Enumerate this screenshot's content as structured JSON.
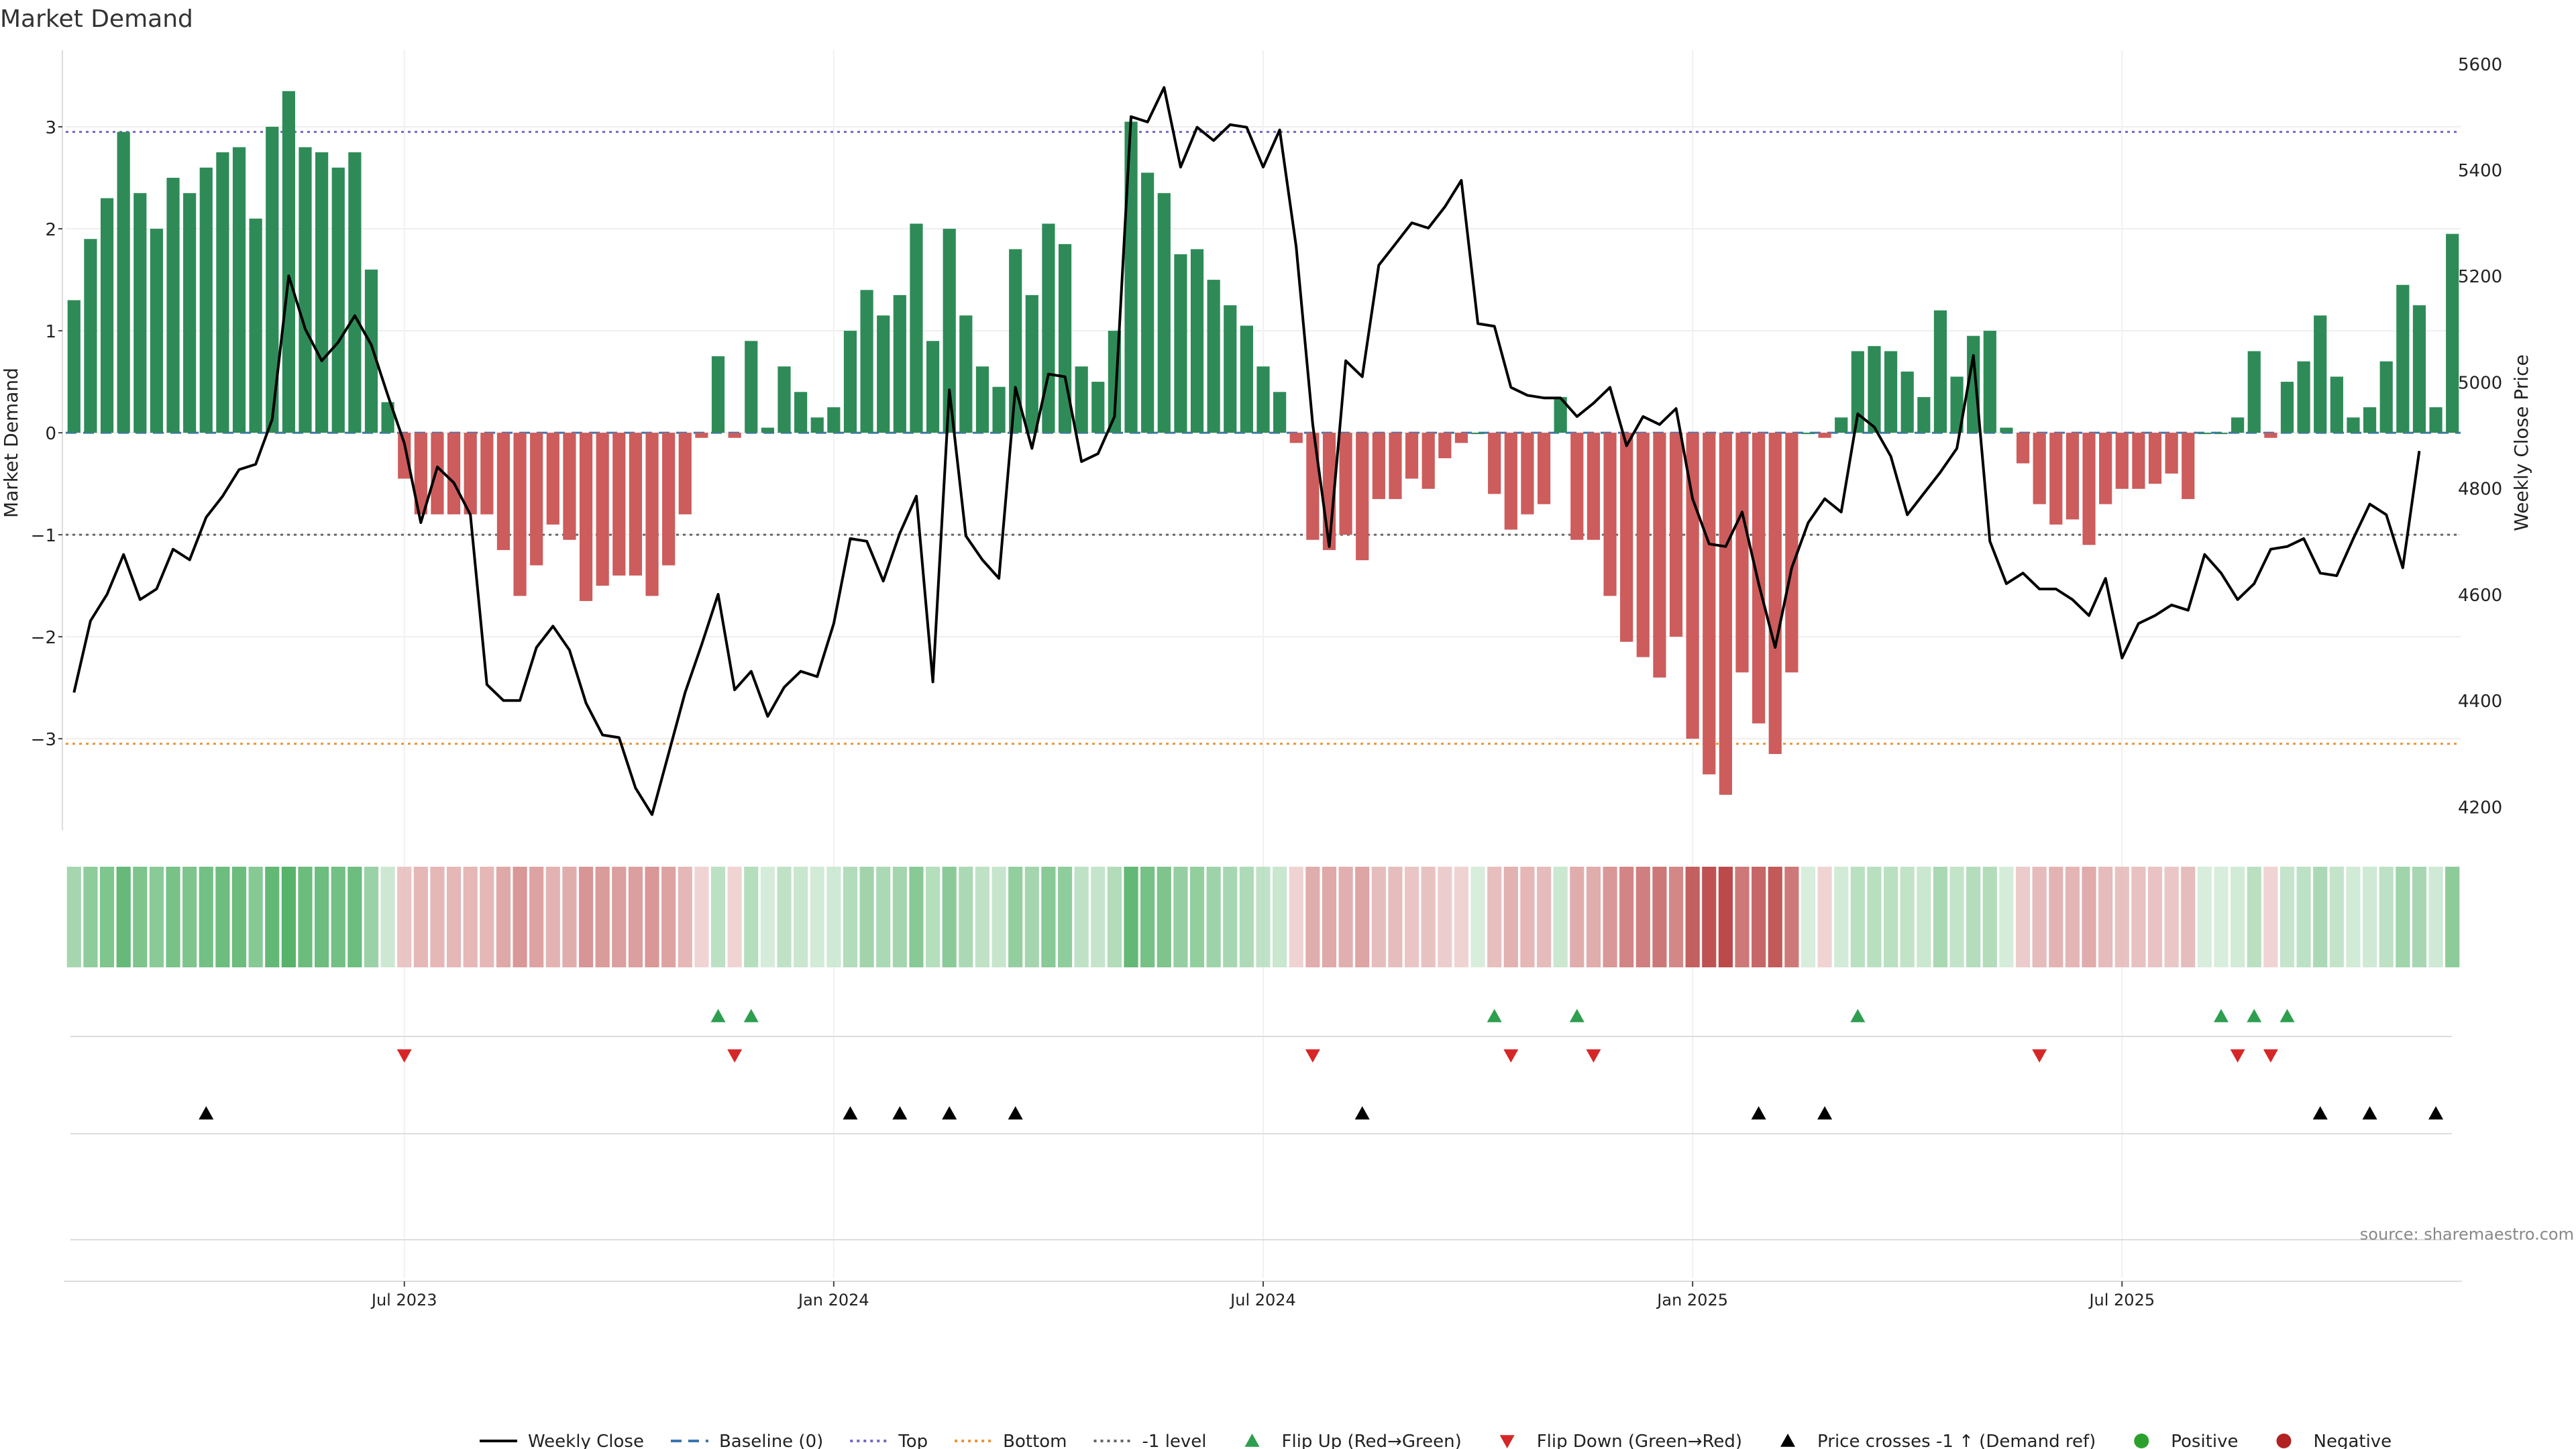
{
  "chart_data": {
    "type": "bar",
    "title": "Market Demand",
    "ylabel": "Market Demand",
    "y2label": "Weekly Close Price",
    "ylim": [
      -3.9,
      3.75
    ],
    "y2lim": [
      4155,
      5625
    ],
    "yticks": [
      3,
      2,
      1,
      0,
      -1,
      -2,
      -3
    ],
    "ytick_labels": [
      "3",
      "2",
      "1",
      "0",
      "−1",
      "−2",
      "−3"
    ],
    "y2ticks": [
      5600,
      5400,
      5200,
      5000,
      4800,
      4600,
      4400,
      4200
    ],
    "y2tick_labels": [
      "5600",
      "5400",
      "5200",
      "5000",
      "4800",
      "4600",
      "4400",
      "4200"
    ],
    "xticks": [
      20,
      46,
      72,
      98,
      124
    ],
    "xtick_labels": [
      "Jul 2023",
      "Jan 2024",
      "Jul 2024",
      "Jan 2025",
      "Jul 2025"
    ],
    "reference_lines": {
      "top": 2.95,
      "bottom": -3.05,
      "baseline": 0,
      "minus_one": -1
    },
    "demand": [
      1.3,
      1.9,
      2.3,
      2.95,
      2.35,
      2.0,
      2.5,
      2.35,
      2.6,
      2.75,
      2.8,
      2.1,
      3.0,
      3.35,
      2.8,
      2.75,
      2.6,
      2.75,
      1.6,
      0.3,
      -0.45,
      -0.8,
      -0.8,
      -0.8,
      -0.8,
      -0.8,
      -1.15,
      -1.6,
      -1.3,
      -0.9,
      -1.05,
      -1.65,
      -1.5,
      -1.4,
      -1.4,
      -1.6,
      -1.3,
      -0.8,
      -0.05,
      0.75,
      -0.05,
      0.9,
      0.05,
      0.65,
      0.4,
      0.15,
      0.25,
      1.0,
      1.4,
      1.15,
      1.35,
      2.05,
      0.9,
      2.0,
      1.15,
      0.65,
      0.45,
      1.8,
      1.35,
      2.05,
      1.85,
      0.65,
      0.5,
      1.0,
      3.05,
      2.55,
      2.35,
      1.75,
      1.8,
      1.5,
      1.25,
      1.05,
      0.65,
      0.4,
      -0.1,
      -1.05,
      -1.15,
      -1.0,
      -1.25,
      -0.65,
      -0.65,
      -0.45,
      -0.55,
      -0.25,
      -0.1,
      0.0,
      -0.6,
      -0.95,
      -0.8,
      -0.7,
      0.35,
      -1.05,
      -1.05,
      -1.6,
      -2.05,
      -2.2,
      -2.4,
      -2.0,
      -3.0,
      -3.35,
      -3.55,
      -2.35,
      -2.85,
      -3.15,
      -2.35,
      0.0,
      -0.05,
      0.15,
      0.8,
      0.85,
      0.8,
      0.6,
      0.35,
      1.2,
      0.55,
      0.95,
      1.0,
      0.05,
      -0.3,
      -0.7,
      -0.9,
      -0.85,
      -1.1,
      -0.7,
      -0.55,
      -0.55,
      -0.5,
      -0.4,
      -0.65,
      0.0,
      0.0,
      0.15,
      0.8,
      -0.05,
      0.5,
      0.7,
      1.15,
      0.55,
      0.15,
      0.25,
      0.7,
      1.45,
      1.25,
      0.25,
      1.95
    ],
    "close": [
      4415,
      4550,
      4600,
      4675,
      4590,
      4610,
      4685,
      4665,
      4745,
      4785,
      4835,
      4845,
      4930,
      5200,
      5100,
      5040,
      5075,
      5125,
      5070,
      4975,
      4885,
      4735,
      4840,
      4810,
      4750,
      4430,
      4400,
      4400,
      4500,
      4540,
      4495,
      4395,
      4335,
      4330,
      4235,
      4185,
      4300,
      4415,
      4505,
      4600,
      4420,
      4455,
      4370,
      4425,
      4455,
      4445,
      4545,
      4705,
      4700,
      4625,
      4715,
      4785,
      4435,
      4985,
      4710,
      4665,
      4630,
      4990,
      4875,
      5015,
      5010,
      4850,
      4865,
      4935,
      5500,
      5490,
      5555,
      5405,
      5480,
      5455,
      5485,
      5480,
      5405,
      5475,
      5255,
      4920,
      4690,
      5040,
      5010,
      5220,
      5260,
      5300,
      5290,
      5330,
      5380,
      5110,
      5105,
      4990,
      4975,
      4970,
      4970,
      4935,
      4960,
      4990,
      4880,
      4935,
      4920,
      4950,
      4780,
      4695,
      4690,
      4755,
      4620,
      4500,
      4650,
      4735,
      4780,
      4755,
      4940,
      4915,
      4860,
      4750,
      4790,
      4830,
      4875,
      5050,
      4700,
      4620,
      4640,
      4610,
      4610,
      4590,
      4560,
      4630,
      4480,
      4545,
      4560,
      4580,
      4570,
      4675,
      4640,
      4590,
      4620,
      4685,
      4690,
      4705,
      4640,
      4635,
      4705,
      4770,
      4750,
      4650,
      4870
    ],
    "flip_up": [
      39,
      41,
      86,
      91,
      108,
      130,
      132,
      134
    ],
    "flip_down": [
      20,
      40,
      75,
      87,
      92,
      119,
      131,
      133
    ],
    "price_crosses": [
      8,
      47,
      50,
      53,
      57,
      78,
      102,
      106,
      136,
      139,
      143
    ],
    "legend": [
      {
        "label": "Weekly Close",
        "color": "#000000",
        "style": "line"
      },
      {
        "label": "Baseline (0)",
        "color": "#3b74b0",
        "style": "dashed"
      },
      {
        "label": "Top",
        "color": "#7666c6",
        "style": "dotted"
      },
      {
        "label": "Bottom",
        "color": "#e8943a",
        "style": "dotted"
      },
      {
        "label": "-1 level",
        "color": "#666666",
        "style": "dotted"
      },
      {
        "label": "Flip Up (Red→Green)",
        "color": "#2e9e4f",
        "style": "triangle-up"
      },
      {
        "label": "Flip Down (Green→Red)",
        "color": "#d62728",
        "style": "triangle-down"
      },
      {
        "label": "Price crosses -1 ↑ (Demand ref)",
        "color": "#000000",
        "style": "triangle-up"
      },
      {
        "label": "Positive",
        "color": "#2ca02c",
        "style": "circle"
      },
      {
        "label": "Negative",
        "color": "#b22222",
        "style": "circle"
      }
    ],
    "source": "source: sharemaestro.com"
  },
  "colors": {
    "positive_bar": "#2e8b57",
    "negative_bar": "#cd5c5c",
    "close_line": "#000000",
    "top_line": "#7666c6",
    "bottom_line": "#e8943a",
    "minus_one_line": "#666666",
    "baseline_line": "#3b74b0",
    "flip_up": "#2e9e4f",
    "flip_down": "#d62728",
    "cross_marker": "#000000"
  }
}
